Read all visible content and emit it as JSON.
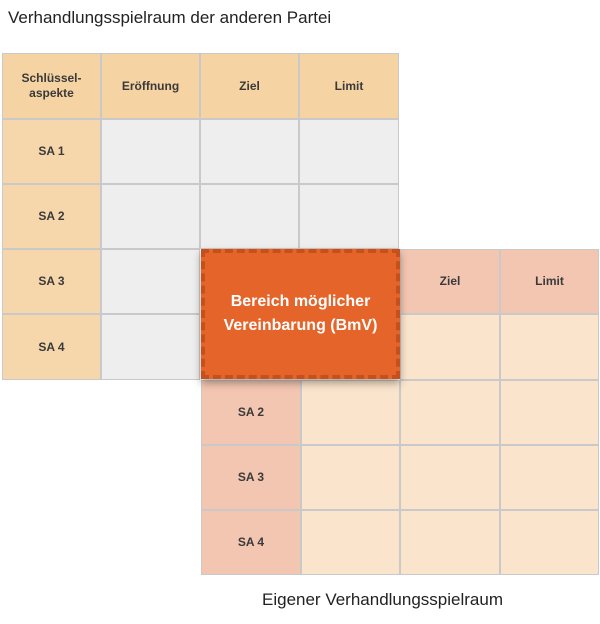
{
  "titles": {
    "other_party": "Verhandlungsspielraum der anderen Partei",
    "own": "Eigener Verhandlungsspielraum"
  },
  "other_table": {
    "header": [
      "Schlüssel-\naspekte",
      "Eröffnung",
      "Ziel",
      "Limit"
    ],
    "rows": [
      "SA 1",
      "SA 2",
      "SA 3",
      "SA 4"
    ]
  },
  "own_table": {
    "header": [
      "Ziel",
      "Limit"
    ],
    "rows": [
      "SA 2",
      "SA 3",
      "SA 4"
    ]
  },
  "zopa": {
    "line1": "Bereich möglicher",
    "line2": "Vereinbarung (BmV)"
  },
  "colors": {
    "other_header": "#f6d3a3",
    "other_body": "#eeeeee",
    "own_header": "#f3c6b1",
    "own_body": "#fbe4cc",
    "zopa": "#e5642a"
  }
}
